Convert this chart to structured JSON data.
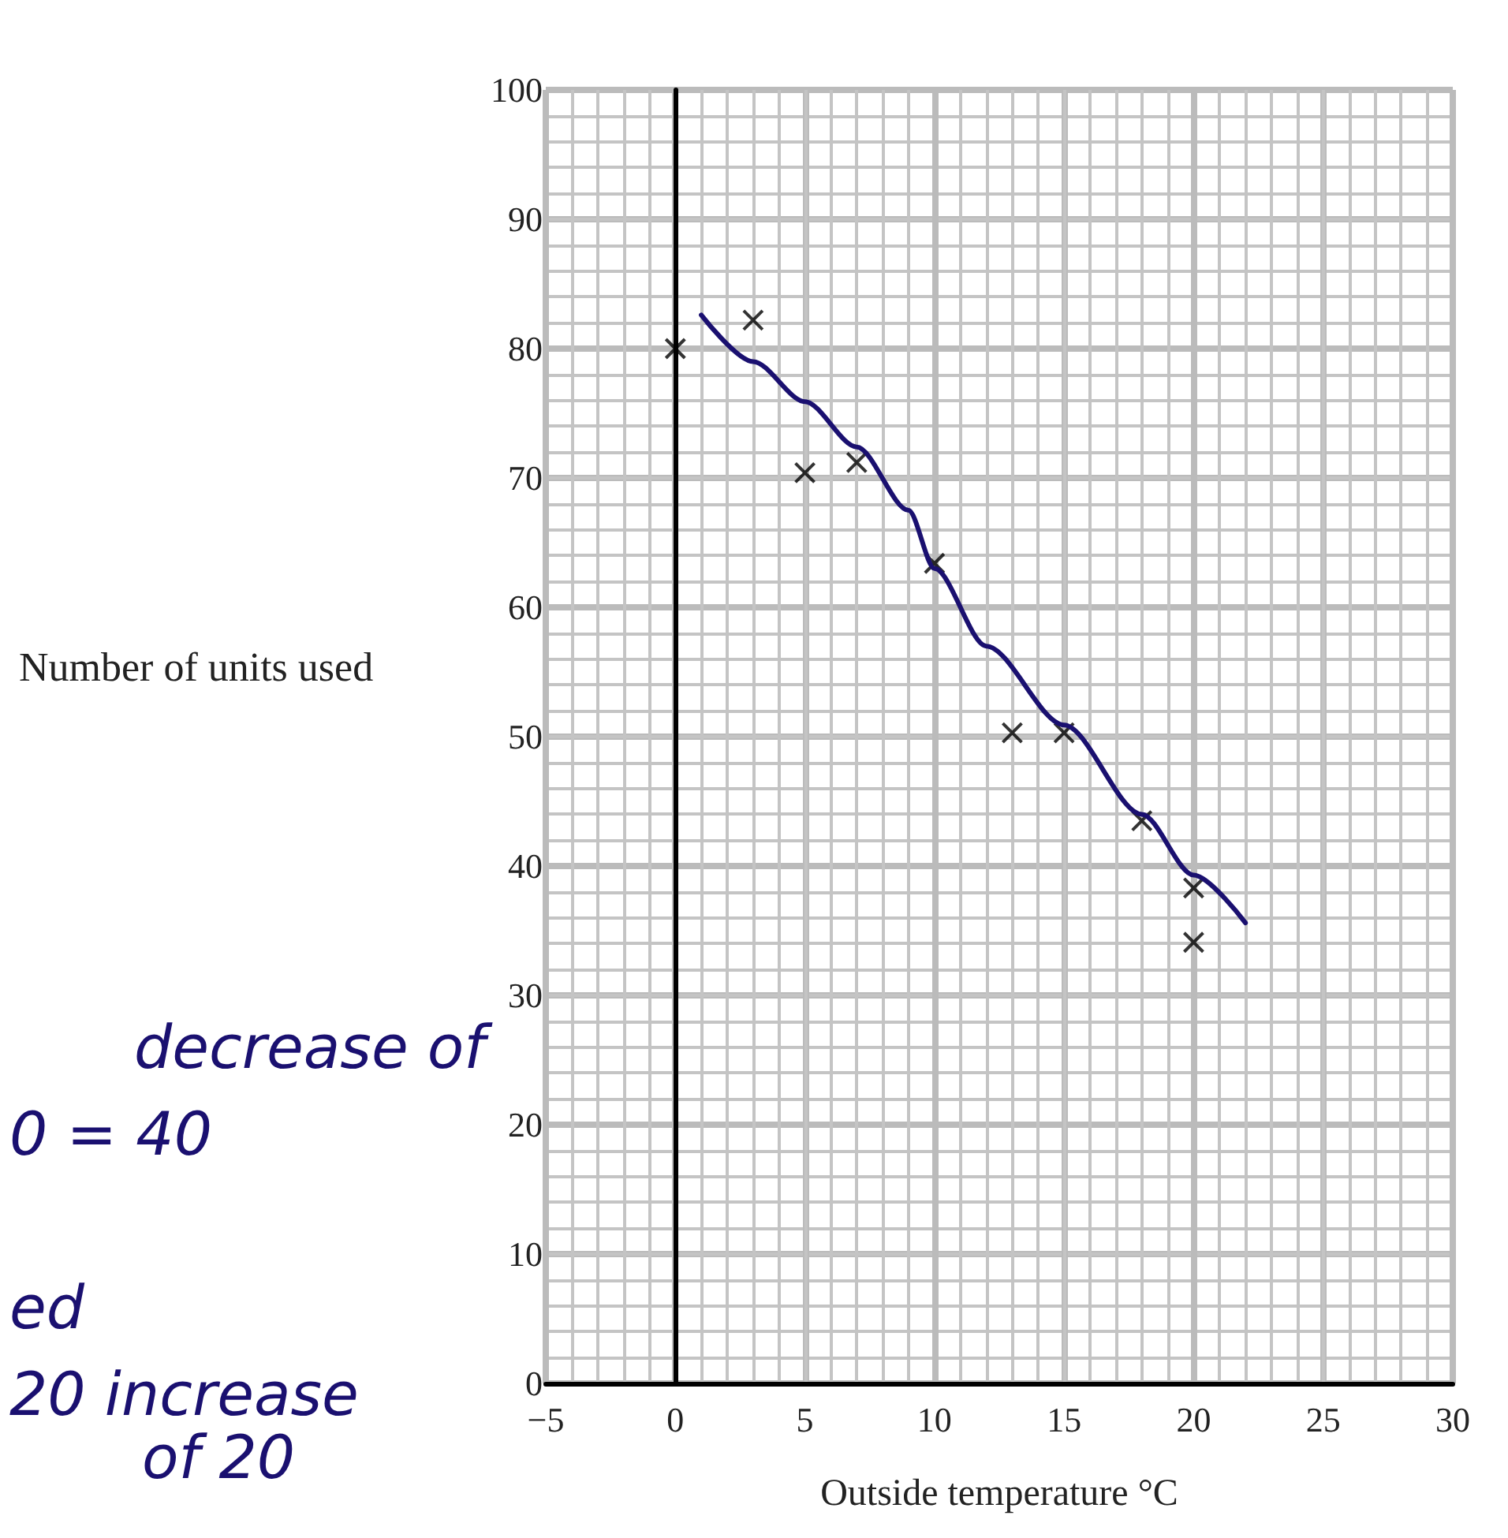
{
  "chart_data": {
    "type": "scatter",
    "xlabel": "Outside temperature °C",
    "ylabel": "Number of units used",
    "xlim": [
      -5,
      30
    ],
    "xticks": [
      -5,
      0,
      5,
      10,
      15,
      20,
      25,
      30
    ],
    "ylim": [
      0,
      100
    ],
    "yticks": [
      0,
      10,
      20,
      30,
      40,
      50,
      60,
      70,
      80,
      90,
      100
    ],
    "grid": true,
    "marker": "cross",
    "series": [
      {
        "color": "#000000",
        "x": [
          0,
          3,
          5,
          7,
          10,
          13,
          15,
          18,
          20,
          20
        ],
        "values": [
          80,
          82.2,
          70.4,
          71.2,
          63.4,
          50.3,
          50.3,
          43.5,
          38.3,
          34.1
        ]
      },
      {
        "type": "line",
        "color": "#1a1070",
        "marker": "none",
        "x": [
          1,
          3,
          5,
          7,
          9,
          10,
          12,
          15,
          18,
          20,
          22
        ],
        "values": [
          82.6,
          79,
          75.9,
          72.4,
          67.5,
          63,
          57,
          50.9,
          44,
          39.3,
          35.6
        ]
      }
    ],
    "annotations": [
      "decrease of",
      "0 = 40",
      "ed",
      "20 increase",
      "of 20"
    ]
  }
}
